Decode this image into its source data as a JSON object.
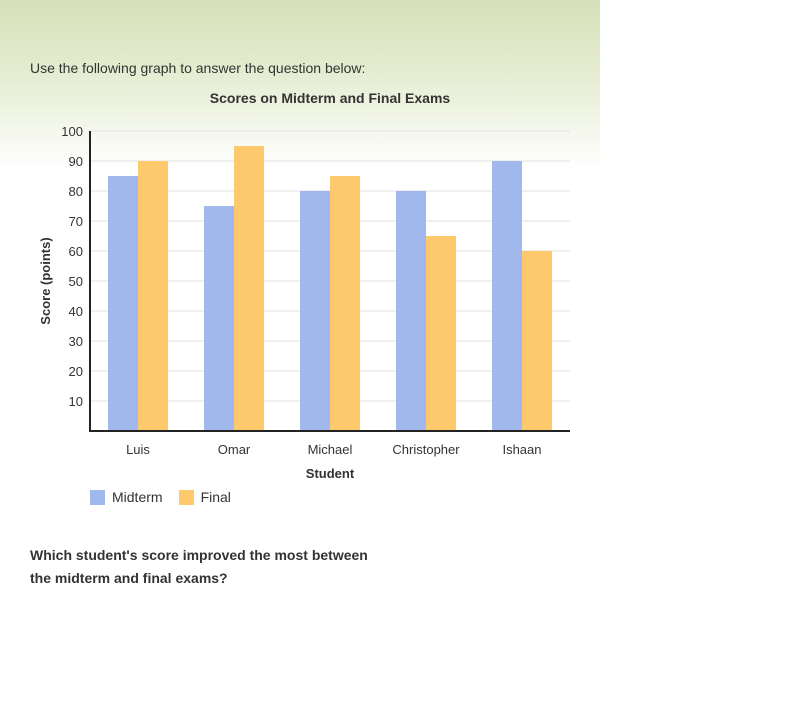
{
  "intro_text": "Use the following graph to answer the question below:",
  "question_text": "Which student's score improved the most between the midterm and final exams?",
  "colors": {
    "midterm": "#a0b8ec",
    "final": "#fec96c",
    "grid": "#e2e2e2",
    "axis": "#222222"
  },
  "chart_data": {
    "type": "bar",
    "title": "Scores on Midterm and Final Exams",
    "xlabel": "Student",
    "ylabel": "Score (points)",
    "categories": [
      "Luis",
      "Omar",
      "Michael",
      "Christopher",
      "Ishaan"
    ],
    "series": [
      {
        "name": "Midterm",
        "values": [
          85,
          75,
          80,
          80,
          90
        ]
      },
      {
        "name": "Final",
        "values": [
          90,
          95,
          85,
          65,
          60
        ]
      }
    ],
    "ylim": [
      0,
      100
    ],
    "yticks": [
      10,
      20,
      30,
      40,
      50,
      60,
      70,
      80,
      90,
      100
    ],
    "grid": true,
    "legend": "bottom-left"
  }
}
